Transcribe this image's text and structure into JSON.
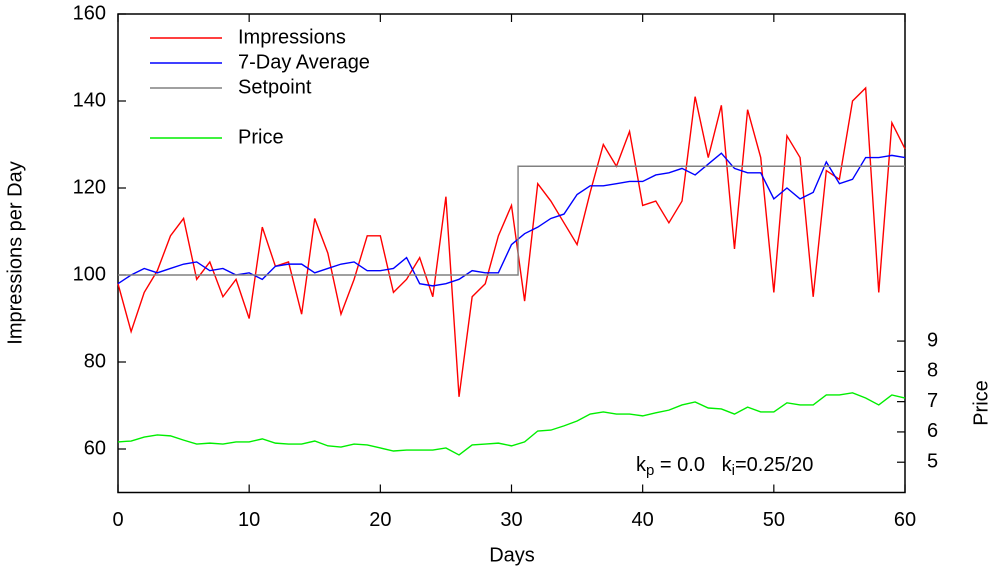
{
  "chart_data": {
    "type": "line",
    "xlabel": "Days",
    "ylabel": "Impressions per Day",
    "y2label": "Price",
    "annotation": [
      "k",
      "p",
      " = 0.0   ",
      "k",
      "i",
      "=0.25/20"
    ],
    "x": [
      0,
      1,
      2,
      3,
      4,
      5,
      6,
      7,
      8,
      9,
      10,
      11,
      12,
      13,
      14,
      15,
      16,
      17,
      18,
      19,
      20,
      21,
      22,
      23,
      24,
      25,
      26,
      27,
      28,
      29,
      30,
      31,
      32,
      33,
      34,
      35,
      36,
      37,
      38,
      39,
      40,
      41,
      42,
      43,
      44,
      45,
      46,
      47,
      48,
      49,
      50,
      51,
      52,
      53,
      54,
      55,
      56,
      57,
      58,
      59,
      60
    ],
    "xlim": [
      0,
      60
    ],
    "xticks": [
      0,
      10,
      20,
      30,
      40,
      50,
      60
    ],
    "ylim": [
      50,
      160
    ],
    "yticks": [
      60,
      80,
      100,
      120,
      140,
      160
    ],
    "y2lim": [
      4,
      19.8
    ],
    "y2ticks": [
      5,
      6,
      7,
      8,
      9
    ],
    "series": [
      {
        "name": "Impressions",
        "color": "#ff0000",
        "values": [
          98,
          87,
          96,
          101,
          109,
          113,
          99,
          103,
          95,
          99,
          90,
          111,
          102,
          103,
          91,
          113,
          105,
          91,
          99,
          109,
          109,
          96,
          99,
          104,
          95,
          118,
          72,
          95,
          98,
          109,
          116,
          94,
          121,
          117,
          112,
          107,
          119,
          130,
          125,
          133,
          116,
          117,
          112,
          117,
          141,
          127,
          139,
          106,
          138,
          127,
          96,
          132,
          127,
          95,
          124,
          122,
          140,
          143,
          96,
          135,
          129
        ]
      },
      {
        "name": "7-Day Average",
        "color": "#0000ff",
        "values": [
          98,
          100,
          101.5,
          100.5,
          101.5,
          102.5,
          103,
          101,
          101.5,
          100,
          100.5,
          99,
          102,
          102.5,
          102.5,
          100.5,
          101.5,
          102.5,
          103,
          101,
          101,
          101.5,
          104,
          98,
          97.5,
          98,
          99,
          101,
          100.5,
          100.5,
          107,
          109.5,
          111,
          113,
          114,
          118.5,
          120.5,
          120.5,
          121,
          121.5,
          121.5,
          123,
          123.5,
          124.5,
          123,
          125.5,
          128,
          124.5,
          123.5,
          123.5,
          117.5,
          120,
          117.5,
          119,
          126,
          121,
          122,
          127,
          127,
          127.5,
          127
        ]
      },
      {
        "name": "Setpoint",
        "color": "#808080",
        "x": [
          0,
          30.5,
          30.5,
          60
        ],
        "values": [
          100,
          100,
          125,
          125
        ]
      },
      {
        "name": "Price",
        "color": "#00ee00",
        "axis": "y2",
        "values": [
          5.67,
          5.7,
          5.83,
          5.9,
          5.87,
          5.73,
          5.6,
          5.63,
          5.6,
          5.67,
          5.67,
          5.77,
          5.63,
          5.6,
          5.6,
          5.7,
          5.54,
          5.5,
          5.6,
          5.57,
          5.47,
          5.37,
          5.4,
          5.4,
          5.4,
          5.47,
          5.24,
          5.57,
          5.6,
          5.63,
          5.54,
          5.67,
          6.03,
          6.06,
          6.2,
          6.36,
          6.59,
          6.66,
          6.59,
          6.59,
          6.53,
          6.63,
          6.72,
          6.89,
          6.99,
          6.79,
          6.76,
          6.59,
          6.82,
          6.66,
          6.66,
          6.96,
          6.89,
          6.89,
          7.22,
          7.22,
          7.29,
          7.12,
          6.89,
          7.22,
          7.12
        ]
      }
    ]
  }
}
